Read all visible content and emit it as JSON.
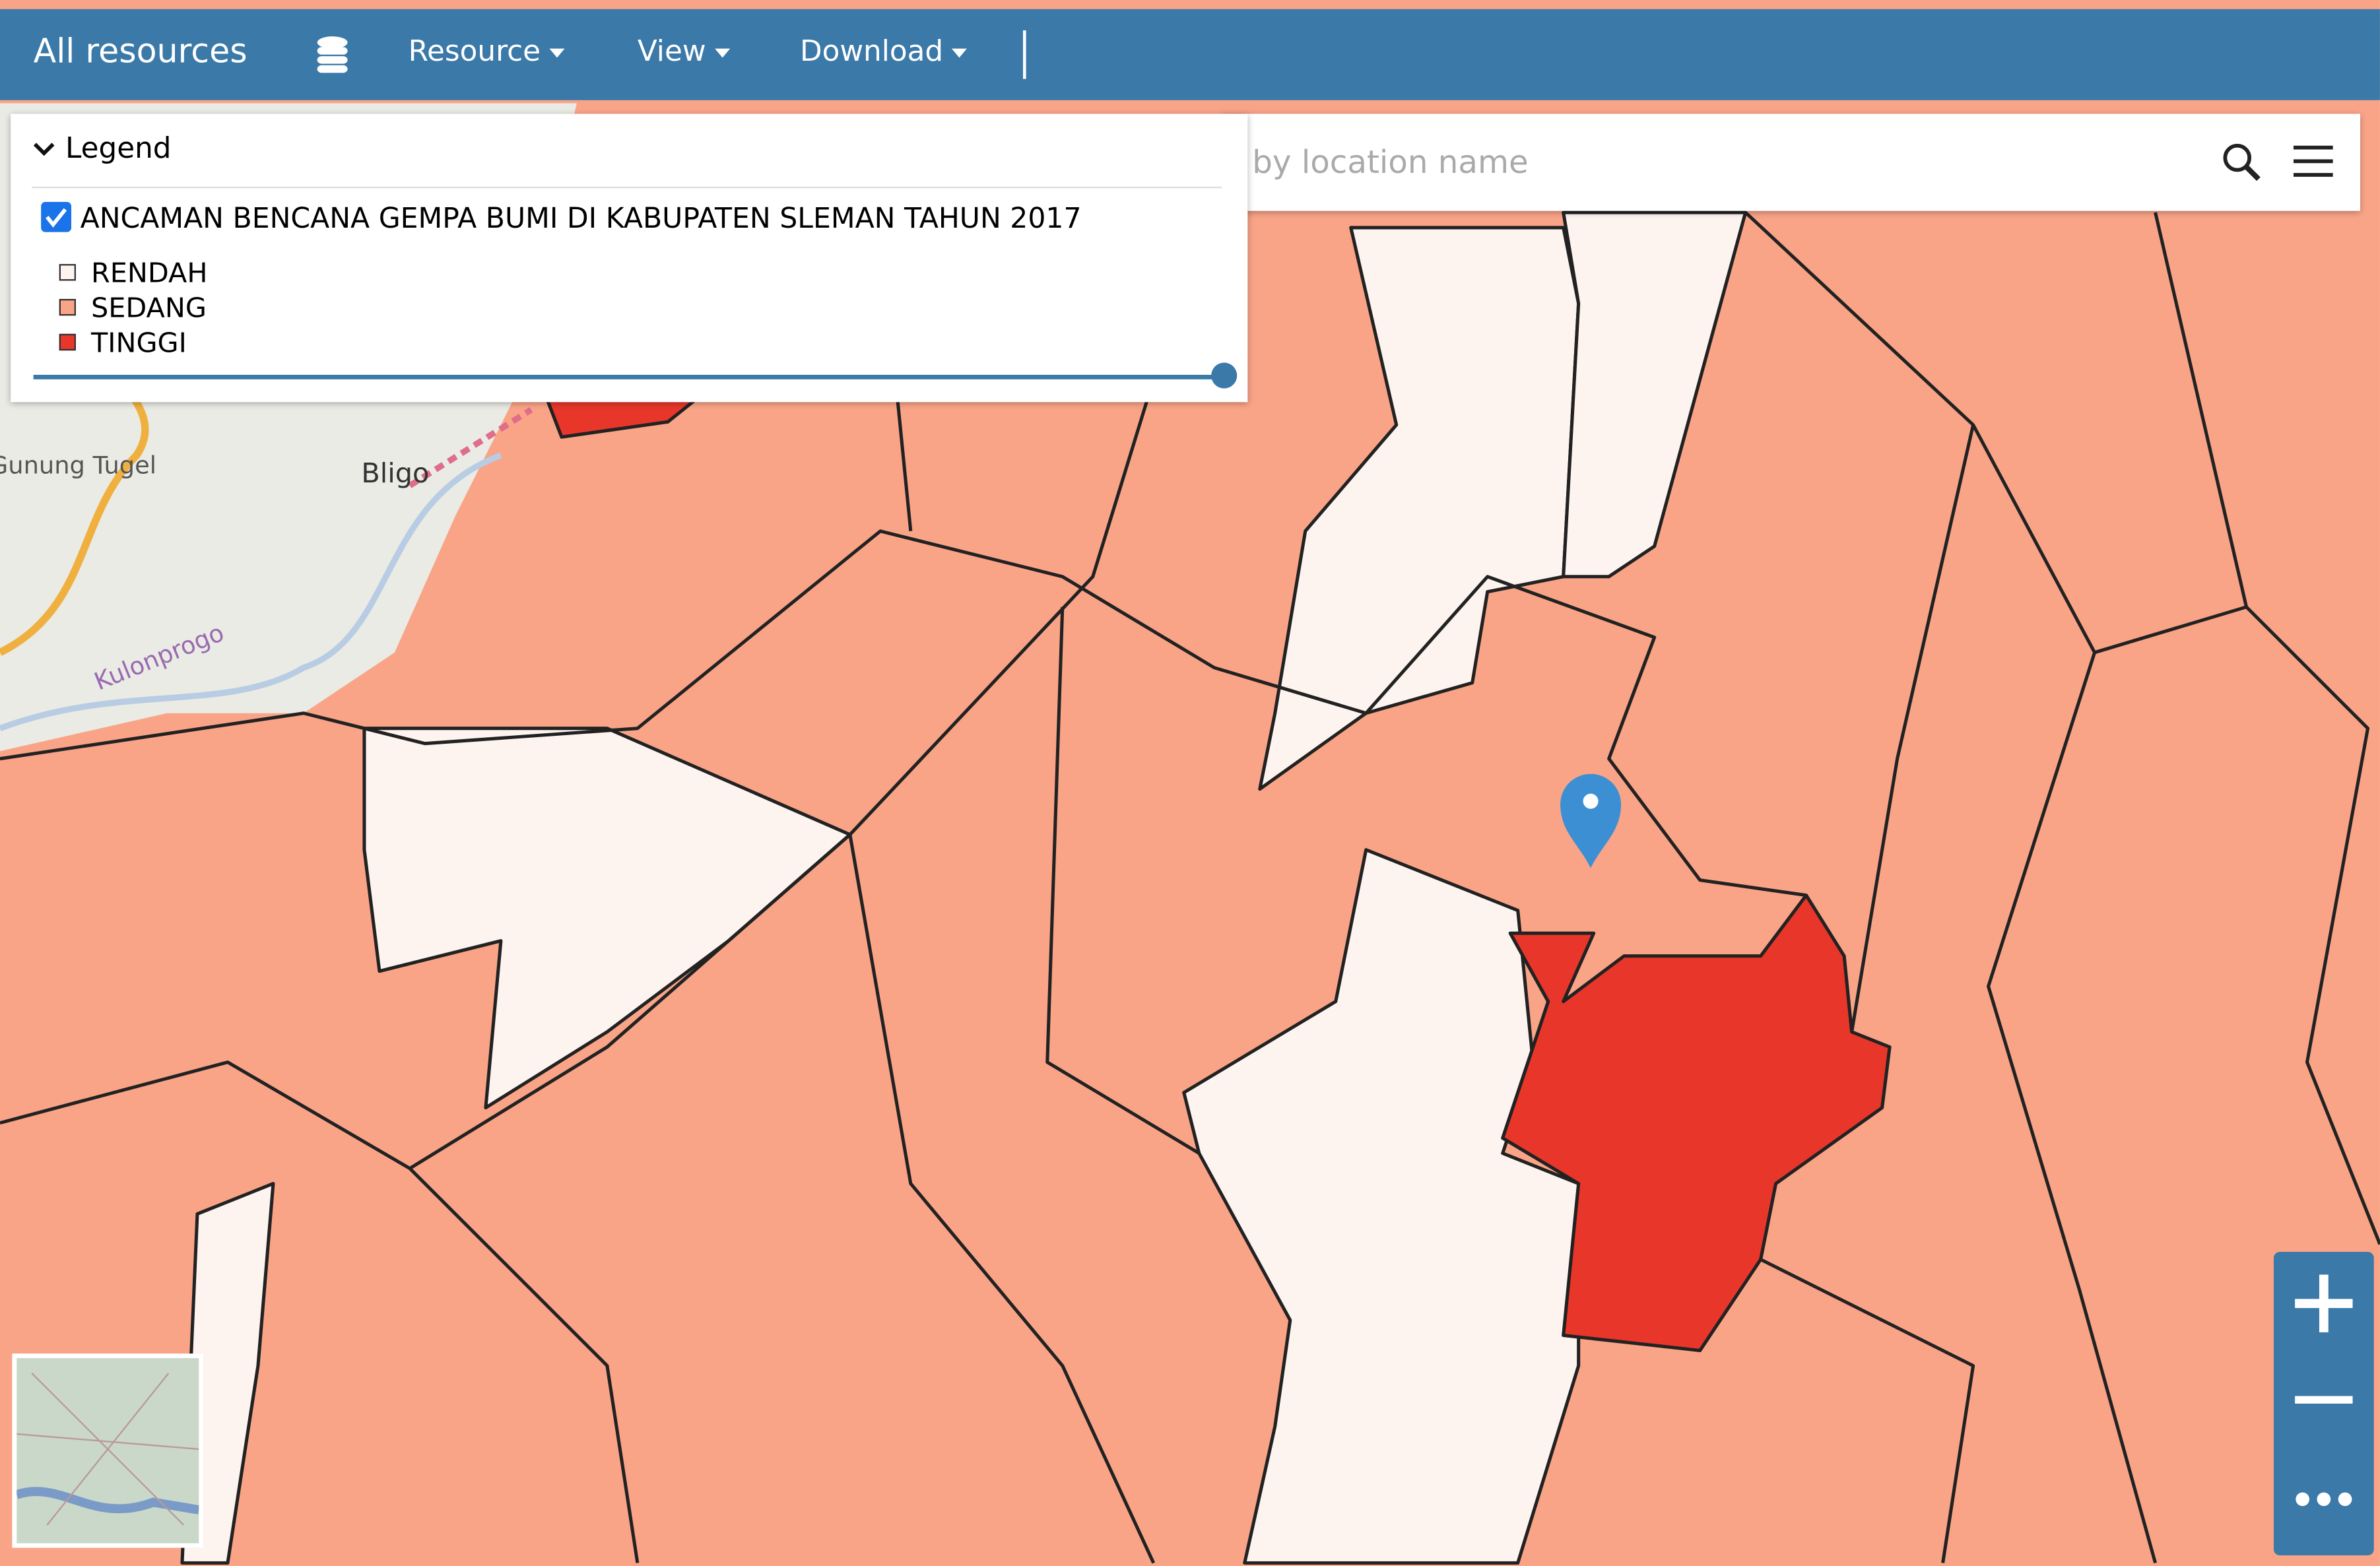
{
  "header": {
    "title": "All resources",
    "menus": [
      "Resource",
      "View",
      "Download"
    ]
  },
  "legend": {
    "title": "Legend",
    "layer": "ANCAMAN BENCANA GEMPA BUMI DI KABUPATEN SLEMAN TAHUN 2017",
    "classes": [
      {
        "label": "RENDAH",
        "color": "#fdf4f0"
      },
      {
        "label": "SEDANG",
        "color": "#f9a487"
      },
      {
        "label": "TINGGI",
        "color": "#e8362a"
      }
    ]
  },
  "search": {
    "placeholder": "by location name"
  },
  "map_labels": [
    "Gunung Tugel",
    "Bligo",
    "Kulonprogo"
  ]
}
